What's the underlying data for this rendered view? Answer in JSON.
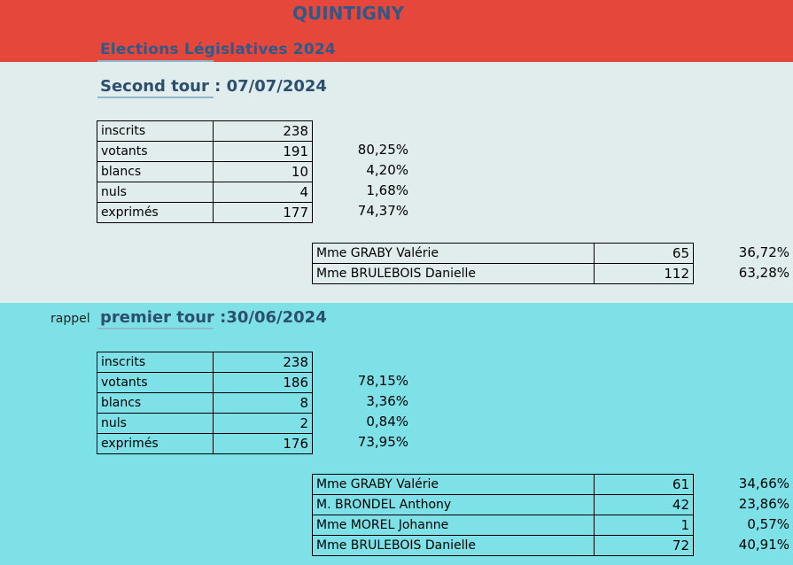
{
  "header": {
    "commune": "QUINTIGNY",
    "election": "Elections Législatives 2024"
  },
  "second_tour": {
    "heading": "Second tour : 07/07/2024",
    "stats": [
      {
        "label": "inscrits",
        "value": "238",
        "pct": ""
      },
      {
        "label": "votants",
        "value": "191",
        "pct": "80,25%"
      },
      {
        "label": "blancs",
        "value": "10",
        "pct": "4,20%"
      },
      {
        "label": "nuls",
        "value": "4",
        "pct": "1,68%"
      },
      {
        "label": "exprimés",
        "value": "177",
        "pct": "74,37%"
      }
    ],
    "candidates": [
      {
        "name": "Mme GRABY Valérie",
        "votes": "65",
        "pct": "36,72%"
      },
      {
        "name": "Mme BRULEBOIS Danielle",
        "votes": "112",
        "pct": "63,28%"
      }
    ]
  },
  "premier_tour": {
    "rappel": "rappel",
    "heading": "premier tour :30/06/2024",
    "stats": [
      {
        "label": "inscrits",
        "value": "238",
        "pct": ""
      },
      {
        "label": "votants",
        "value": "186",
        "pct": "78,15%"
      },
      {
        "label": "blancs",
        "value": "8",
        "pct": "3,36%"
      },
      {
        "label": "nuls",
        "value": "2",
        "pct": "0,84%"
      },
      {
        "label": "exprimés",
        "value": "176",
        "pct": "73,95%"
      }
    ],
    "candidates": [
      {
        "name": "Mme GRABY Valérie",
        "votes": "61",
        "pct": "34,66%"
      },
      {
        "name": "M. BRONDEL Anthony",
        "votes": "42",
        "pct": "23,86%"
      },
      {
        "name": "Mme MOREL Johanne",
        "votes": "1",
        "pct": "0,57%"
      },
      {
        "name": "Mme BRULEBOIS Danielle",
        "votes": "72",
        "pct": "40,91%"
      }
    ]
  },
  "colors": {
    "header_band": "#e5483a",
    "second_tour_band": "#e1eced",
    "premier_tour_band": "#7ee1e8",
    "title_text": "#2d5a8a"
  }
}
